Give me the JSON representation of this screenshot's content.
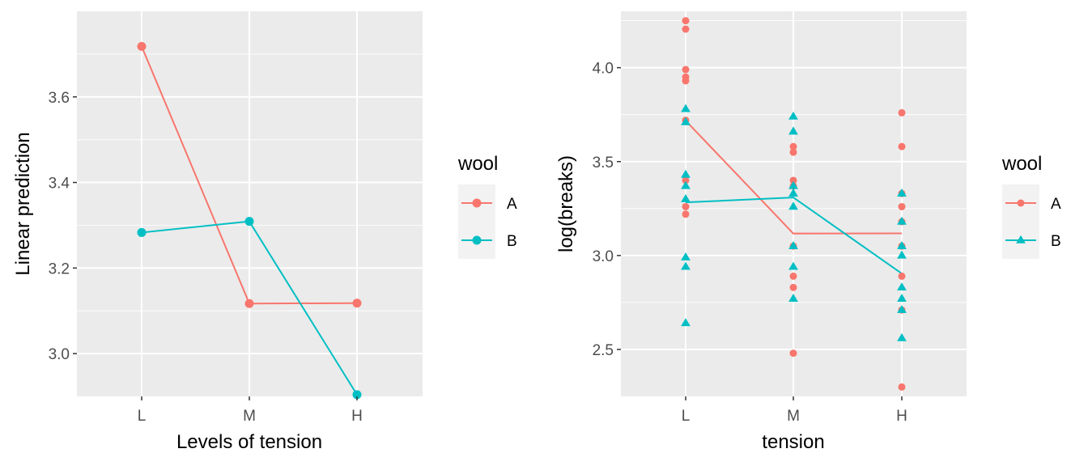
{
  "chart_data": [
    {
      "type": "line",
      "title": "",
      "xlabel": "Levels of tension",
      "ylabel": "Linear prediction",
      "categories": [
        "L",
        "M",
        "H"
      ],
      "ylim": [
        2.9,
        3.8
      ],
      "yticks": [
        3.0,
        3.2,
        3.4,
        3.6
      ],
      "ytick_labels": [
        "3.0",
        "3.2",
        "3.4",
        "3.6"
      ],
      "grid": true,
      "legend": {
        "title": "wool",
        "position": "right"
      },
      "series": [
        {
          "name": "A",
          "color": "#F8766D",
          "marker": "circle",
          "values": [
            3.718,
            3.117,
            3.118
          ]
        },
        {
          "name": "B",
          "color": "#00BFC4",
          "marker": "circle",
          "values": [
            3.283,
            3.309,
            2.904
          ]
        }
      ]
    },
    {
      "type": "scatter",
      "title": "",
      "xlabel": "tension",
      "ylabel": "log(breaks)",
      "categories": [
        "L",
        "M",
        "H"
      ],
      "ylim": [
        2.25,
        4.3
      ],
      "yticks": [
        2.5,
        3.0,
        3.5,
        4.0
      ],
      "ytick_labels": [
        "2.5",
        "3.0",
        "3.5",
        "4.0"
      ],
      "grid": true,
      "legend": {
        "title": "wool",
        "position": "right"
      },
      "series": [
        {
          "name": "A",
          "color": "#F8766D",
          "marker": "circle",
          "points": {
            "L": [
              4.25,
              4.205,
              3.99,
              3.95,
              3.93,
              3.72,
              3.4,
              3.26,
              3.22
            ],
            "M": [
              3.58,
              3.55,
              3.4,
              3.37,
              3.05,
              2.89,
              2.83,
              2.48
            ],
            "H": [
              3.76,
              3.58,
              3.33,
              3.26,
              3.18,
              3.05,
              2.89,
              2.71,
              2.3
            ]
          },
          "line": [
            3.718,
            3.117,
            3.118
          ]
        },
        {
          "name": "B",
          "color": "#00BFC4",
          "marker": "triangle",
          "points": {
            "L": [
              3.78,
              3.71,
              3.43,
              3.37,
              3.3,
              2.99,
              2.94,
              2.64
            ],
            "M": [
              3.74,
              3.66,
              3.37,
              3.33,
              3.26,
              3.05,
              2.94,
              2.77
            ],
            "H": [
              3.33,
              3.18,
              3.05,
              3.0,
              2.83,
              2.77,
              2.71,
              2.56
            ]
          },
          "line": [
            3.283,
            3.309,
            2.904
          ]
        }
      ]
    }
  ]
}
